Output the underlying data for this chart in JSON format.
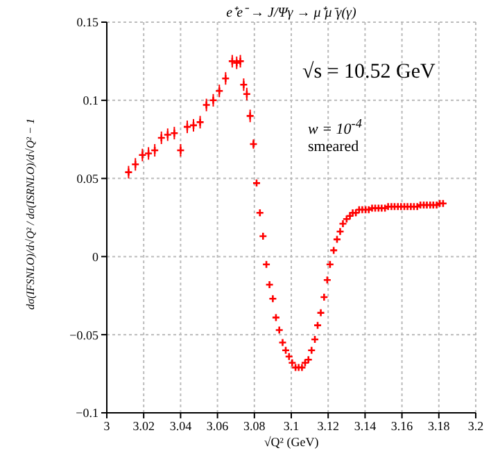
{
  "chart_data": {
    "type": "scatter",
    "title": "e⁺e⁻ → J/Ψγ → μ⁺μ⁻γ(γ)",
    "xlabel": "√Q² (GeV)",
    "ylabel": "dσ(IFSNLO)/d√Q² / dσ(ISRNLO)/d√Q² − 1",
    "annotations": [
      "√s = 10.52 GeV",
      "w = 10$^{-4}$",
      "smeared"
    ],
    "xlim": [
      3,
      3.2
    ],
    "xticks": [
      3,
      3.02,
      3.04,
      3.06,
      3.08,
      3.1,
      3.12,
      3.14,
      3.16,
      3.18,
      3.2
    ],
    "ylim": [
      -0.1,
      0.15
    ],
    "yticks": [
      -0.1,
      -0.05,
      0,
      0.05,
      0.1,
      0.15
    ],
    "grid": true,
    "legend": false,
    "marker": "cross",
    "series": [
      {
        "color": "#ff0000",
        "x": [
          3.0118,
          3.0155,
          3.0193,
          3.0226,
          3.026,
          3.0296,
          3.033,
          3.0366,
          3.04,
          3.0436,
          3.047,
          3.0506,
          3.054,
          3.0577,
          3.061,
          3.0644,
          3.068,
          3.0704,
          3.0724,
          3.0742,
          3.0759,
          3.0777,
          3.0795,
          3.0812,
          3.083,
          3.0847,
          3.0865,
          3.0882,
          3.09,
          3.0917,
          3.0935,
          3.0953,
          3.097,
          3.0988,
          3.1005,
          3.1023,
          3.104,
          3.1058,
          3.1075,
          3.1093,
          3.111,
          3.1128,
          3.1143,
          3.116,
          3.1178,
          3.1195,
          3.121,
          3.123,
          3.1248,
          3.1265,
          3.128,
          3.13,
          3.1318,
          3.1333,
          3.135,
          3.1368,
          3.1385,
          3.1403,
          3.142,
          3.1438,
          3.1455,
          3.1473,
          3.149,
          3.1508,
          3.1525,
          3.1543,
          3.156,
          3.1578,
          3.1595,
          3.1613,
          3.163,
          3.1648,
          3.1665,
          3.1683,
          3.17,
          3.1718,
          3.1735,
          3.1753,
          3.177,
          3.1788,
          3.1805,
          3.1823
        ],
        "values": [
          0.054,
          0.059,
          0.065,
          0.066,
          0.068,
          0.076,
          0.078,
          0.079,
          0.068,
          0.083,
          0.084,
          0.086,
          0.097,
          0.1,
          0.106,
          0.114,
          0.125,
          0.124,
          0.125,
          0.11,
          0.104,
          0.09,
          0.072,
          0.047,
          0.028,
          0.013,
          -0.005,
          -0.018,
          -0.027,
          -0.039,
          -0.047,
          -0.055,
          -0.06,
          -0.064,
          -0.068,
          -0.071,
          -0.071,
          -0.071,
          -0.068,
          -0.066,
          -0.06,
          -0.053,
          -0.044,
          -0.036,
          -0.026,
          -0.015,
          -0.005,
          0.004,
          0.011,
          0.016,
          0.021,
          0.024,
          0.026,
          0.028,
          0.028,
          0.03,
          0.03,
          0.03,
          0.03,
          0.031,
          0.031,
          0.031,
          0.031,
          0.031,
          0.032,
          0.032,
          0.032,
          0.032,
          0.032,
          0.032,
          0.032,
          0.032,
          0.032,
          0.032,
          0.033,
          0.033,
          0.033,
          0.033,
          0.033,
          0.033,
          0.034,
          0.034
        ],
        "errors": [
          0.004,
          0.004,
          0.004,
          0.004,
          0.004,
          0.004,
          0.004,
          0.004,
          0.004,
          0.004,
          0.004,
          0.004,
          0.004,
          0.004,
          0.004,
          0.004,
          0.004,
          0.004,
          0.004,
          0.004,
          0.004,
          0.004,
          0.003,
          null,
          null,
          null,
          null,
          null,
          null,
          null,
          null,
          null,
          null,
          null,
          null,
          null,
          null,
          null,
          null,
          null,
          null,
          null,
          null,
          null,
          null,
          null,
          null,
          null,
          null,
          null,
          null,
          null,
          null,
          null,
          null,
          null,
          null,
          null,
          null,
          null,
          null,
          null,
          null,
          null,
          null,
          null,
          null,
          null,
          null,
          null,
          null,
          null,
          null,
          null,
          null,
          null,
          null,
          null,
          null,
          null,
          null,
          null
        ]
      }
    ]
  }
}
